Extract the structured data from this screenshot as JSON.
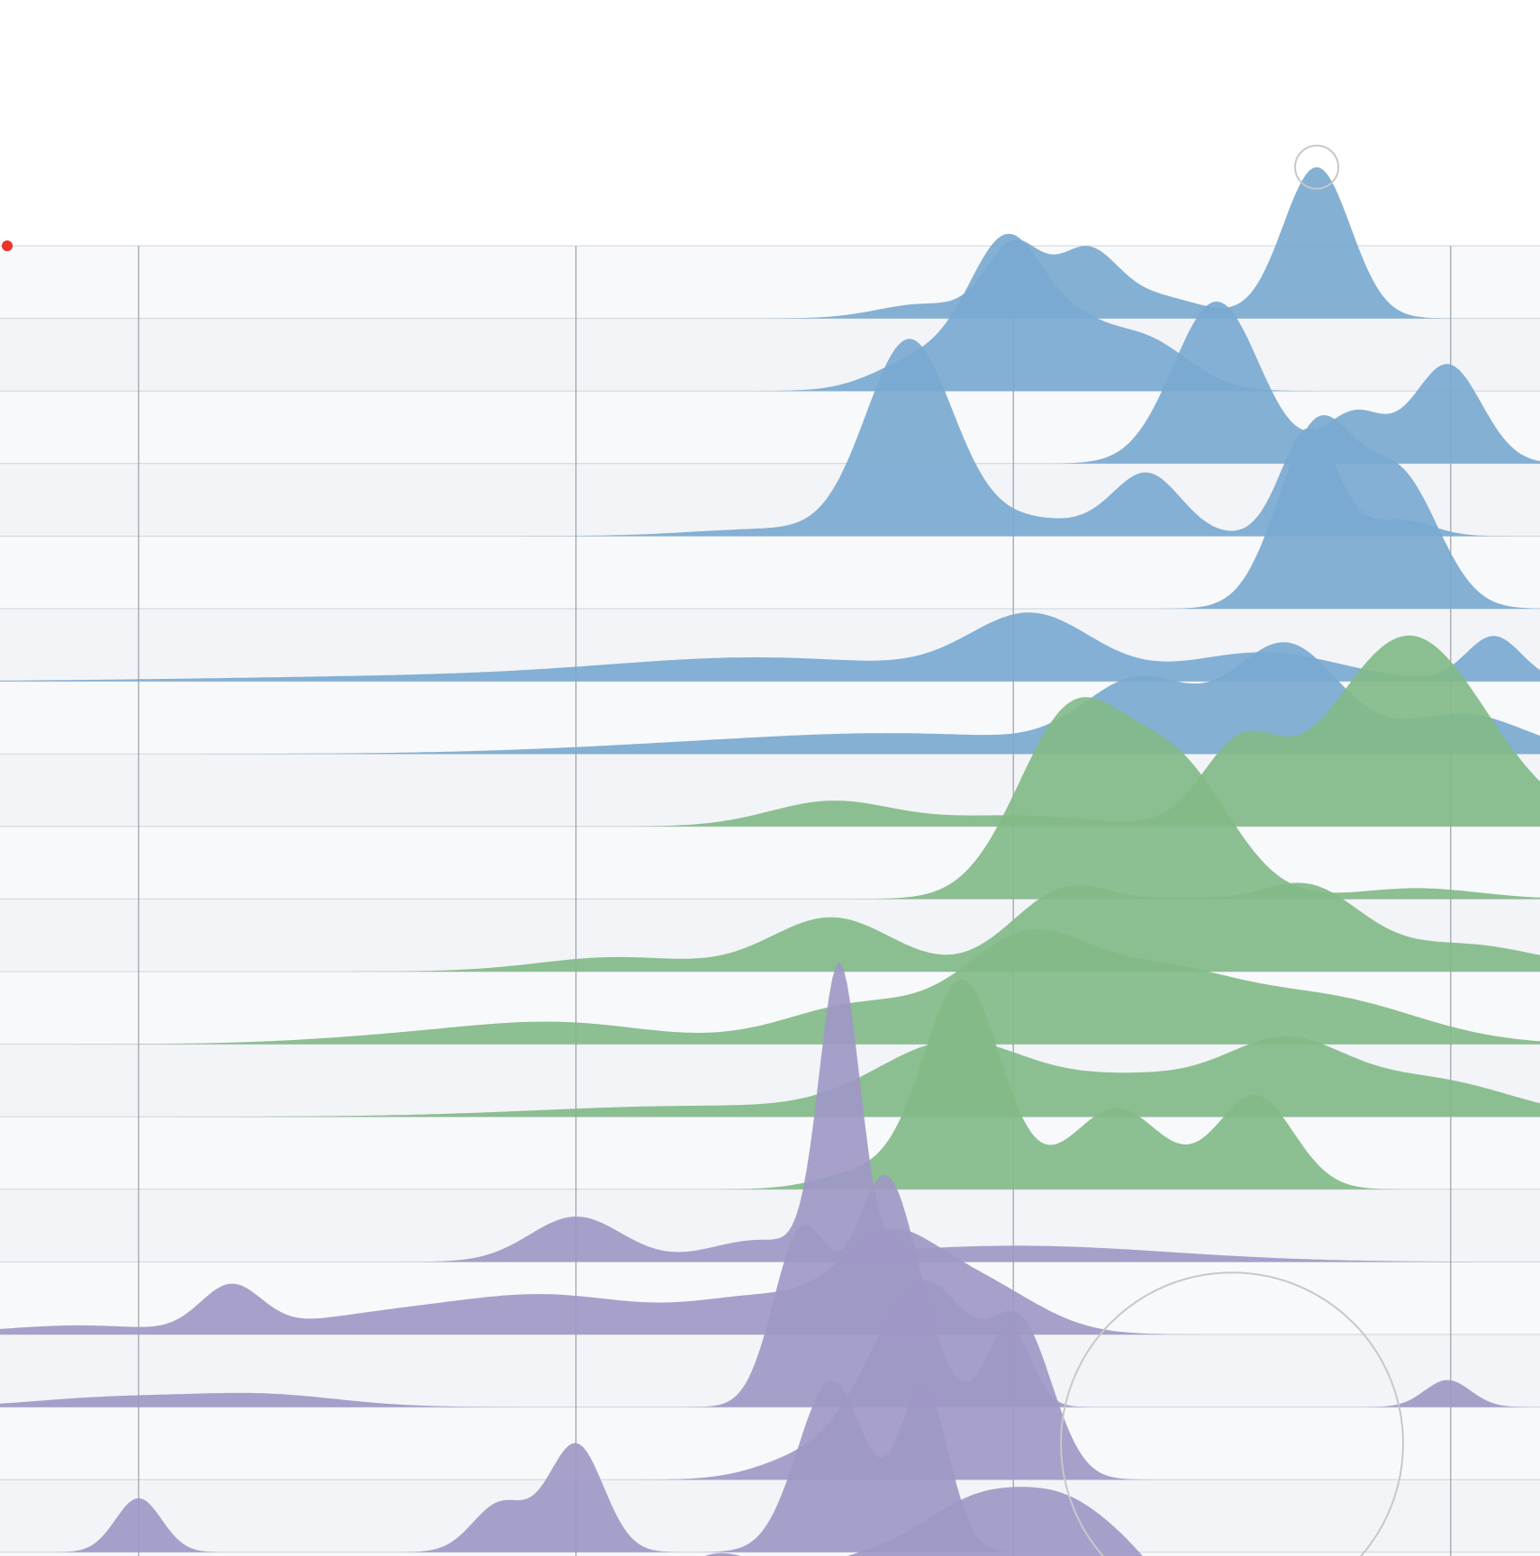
{
  "colors": {
    "blue": "#7aa9d0",
    "green": "#82ba88",
    "purple": "#9e98c5",
    "band_light": "#f7f9fb",
    "band_dark": "#f2f4f7",
    "divider": "#cfd4da",
    "gridline": "#9a9ea6",
    "highlight_dot": "#e8342c",
    "annotation_circle": "#c8c8c8"
  },
  "chart_data": {
    "type": "area",
    "title": "",
    "xlabel": "",
    "ylabel": "",
    "xlim": [
      0,
      1
    ],
    "grid": true,
    "legend": "none",
    "gridline_x": [
      0.09,
      0.374,
      0.658,
      0.942
    ],
    "highlight_dot": {
      "row": 0,
      "x": 0.0
    },
    "annotation_circles": [
      {
        "row": 0,
        "x": 0.855,
        "value": 0.84
      },
      {
        "row": 16,
        "x": 0.8,
        "value": 0.0
      }
    ],
    "series": [
      {
        "color": "blue",
        "row_label": "",
        "peaks": [
          [
            0.658,
            0.4,
            0.018
          ],
          [
            0.705,
            0.35,
            0.02
          ],
          [
            0.75,
            0.12,
            0.03
          ],
          [
            0.855,
            0.84,
            0.022
          ],
          [
            0.6,
            0.08,
            0.03
          ]
        ]
      },
      {
        "color": "blue",
        "row_label": "",
        "peaks": [
          [
            0.6,
            0.18,
            0.03
          ],
          [
            0.655,
            0.82,
            0.025
          ],
          [
            0.7,
            0.18,
            0.02
          ],
          [
            0.74,
            0.3,
            0.03
          ]
        ]
      },
      {
        "color": "blue",
        "row_label": "",
        "peaks": [
          [
            0.79,
            0.9,
            0.028
          ],
          [
            0.88,
            0.28,
            0.02
          ],
          [
            0.94,
            0.55,
            0.022
          ]
        ]
      },
      {
        "color": "blue",
        "row_label": "",
        "peaks": [
          [
            0.59,
            1.05,
            0.028
          ],
          [
            0.66,
            0.1,
            0.05
          ],
          [
            0.745,
            0.33,
            0.022
          ],
          [
            0.85,
            0.6,
            0.018
          ],
          [
            0.91,
            0.09,
            0.02
          ],
          [
            0.5,
            0.04,
            0.05
          ]
        ]
      },
      {
        "color": "blue",
        "row_label": "",
        "peaks": [
          [
            0.855,
            1.0,
            0.025
          ],
          [
            0.91,
            0.7,
            0.025
          ]
        ]
      },
      {
        "color": "blue",
        "row_label": "",
        "peaks": [
          [
            0.67,
            0.35,
            0.04
          ],
          [
            0.82,
            0.16,
            0.05
          ],
          [
            0.97,
            0.25,
            0.018
          ],
          [
            0.5,
            0.12,
            0.1
          ],
          [
            0.3,
            0.03,
            0.15
          ]
        ]
      },
      {
        "color": "blue",
        "row_label": "",
        "peaks": [
          [
            0.74,
            0.38,
            0.035
          ],
          [
            0.835,
            0.6,
            0.035
          ],
          [
            0.95,
            0.22,
            0.04
          ],
          [
            0.6,
            0.1,
            0.1
          ],
          [
            0.45,
            0.04,
            0.1
          ]
        ]
      },
      {
        "color": "green",
        "row_label": "",
        "peaks": [
          [
            0.915,
            1.06,
            0.05
          ],
          [
            0.805,
            0.42,
            0.025
          ],
          [
            0.54,
            0.14,
            0.04
          ],
          [
            0.66,
            0.06,
            0.05
          ]
        ]
      },
      {
        "color": "green",
        "row_label": "",
        "peaks": [
          [
            0.695,
            1.0,
            0.035
          ],
          [
            0.765,
            0.7,
            0.035
          ],
          [
            0.92,
            0.06,
            0.04
          ]
        ]
      },
      {
        "color": "green",
        "row_label": "",
        "peaks": [
          [
            0.54,
            0.3,
            0.04
          ],
          [
            0.69,
            0.42,
            0.035
          ],
          [
            0.77,
            0.35,
            0.04
          ],
          [
            0.85,
            0.42,
            0.035
          ],
          [
            0.95,
            0.15,
            0.05
          ],
          [
            0.4,
            0.08,
            0.05
          ]
        ]
      },
      {
        "color": "green",
        "row_label": "",
        "peaks": [
          [
            0.665,
            0.52,
            0.04
          ],
          [
            0.75,
            0.36,
            0.05
          ],
          [
            0.86,
            0.25,
            0.06
          ],
          [
            0.56,
            0.22,
            0.05
          ],
          [
            0.37,
            0.1,
            0.06
          ],
          [
            0.28,
            0.05,
            0.07
          ]
        ]
      },
      {
        "color": "green",
        "row_label": "",
        "peaks": [
          [
            0.62,
            0.4,
            0.05
          ],
          [
            0.835,
            0.38,
            0.04
          ],
          [
            0.74,
            0.2,
            0.05
          ],
          [
            0.93,
            0.2,
            0.05
          ],
          [
            0.45,
            0.06,
            0.1
          ]
        ]
      },
      {
        "color": "green",
        "row_label": "",
        "peaks": [
          [
            0.625,
            1.15,
            0.025
          ],
          [
            0.725,
            0.45,
            0.03
          ],
          [
            0.815,
            0.52,
            0.025
          ],
          [
            0.565,
            0.1,
            0.03
          ]
        ]
      },
      {
        "color": "purple",
        "row_label": "",
        "peaks": [
          [
            0.545,
            1.6,
            0.013
          ],
          [
            0.374,
            0.25,
            0.03
          ],
          [
            0.49,
            0.1,
            0.03
          ],
          [
            0.66,
            0.09,
            0.1
          ]
        ]
      },
      {
        "color": "purple",
        "row_label": "",
        "peaks": [
          [
            0.575,
            0.4,
            0.03
          ],
          [
            0.15,
            0.25,
            0.02
          ],
          [
            0.36,
            0.2,
            0.06
          ],
          [
            0.63,
            0.3,
            0.04
          ],
          [
            0.5,
            0.2,
            0.05
          ],
          [
            0.25,
            0.1,
            0.06
          ],
          [
            0.05,
            0.05,
            0.05
          ]
        ]
      },
      {
        "color": "purple",
        "row_label": "",
        "peaks": [
          [
            0.52,
            0.95,
            0.018
          ],
          [
            0.575,
            1.28,
            0.022
          ],
          [
            0.655,
            0.45,
            0.014
          ],
          [
            0.94,
            0.15,
            0.015
          ],
          [
            0.17,
            0.07,
            0.05
          ],
          [
            0.07,
            0.05,
            0.05
          ]
        ]
      },
      {
        "color": "purple",
        "row_label": "",
        "peaks": [
          [
            0.6,
            1.1,
            0.035
          ],
          [
            0.665,
            0.7,
            0.02
          ],
          [
            0.52,
            0.1,
            0.03
          ]
        ]
      },
      {
        "color": "purple",
        "row_label": "",
        "peaks": [
          [
            0.09,
            0.3,
            0.015
          ],
          [
            0.325,
            0.27,
            0.018
          ],
          [
            0.374,
            0.6,
            0.018
          ],
          [
            0.54,
            0.95,
            0.022
          ],
          [
            0.6,
            0.9,
            0.016
          ]
        ]
      },
      {
        "color": "purple",
        "row_label": "",
        "peaks": [
          [
            0.46,
            0.3,
            0.03
          ],
          [
            0.56,
            0.35,
            0.06
          ],
          [
            0.645,
            0.55,
            0.04
          ],
          [
            0.7,
            0.4,
            0.03
          ],
          [
            0.74,
            0.2,
            0.025
          ],
          [
            0.37,
            0.08,
            0.03
          ],
          [
            0.23,
            0.04,
            0.05
          ],
          [
            0.09,
            0.05,
            0.02
          ]
        ]
      }
    ]
  }
}
